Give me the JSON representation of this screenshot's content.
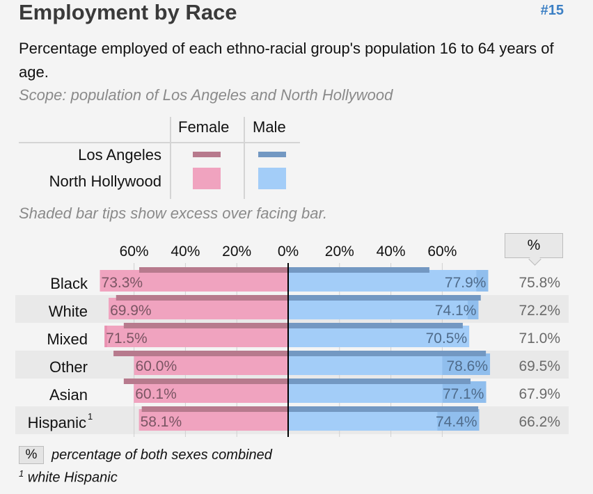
{
  "header": {
    "title": "Employment by Race",
    "number": "#15",
    "subtitle": "Percentage employed of each ethno-racial group's population 16 to 64 years of age.",
    "scope": "Scope: population of Los Angeles and North Hollywood"
  },
  "legend": {
    "col_female": "Female",
    "col_male": "Male",
    "row_la": "Los Angeles",
    "row_nh": "North Hollywood"
  },
  "note": "Shaded bar tips show excess over facing bar.",
  "pct_header": "%",
  "footer": {
    "box": "%",
    "box_text": "percentage of both sexes combined",
    "footnote_mark": "1",
    "footnote_text": "white Hispanic"
  },
  "colors": {
    "female_nh": "#f0a3bf",
    "female_la": "#b77a8d",
    "male_nh": "#a3cdf8",
    "male_la": "#7398c2",
    "badge": "#3b7fc4"
  },
  "chart_data": {
    "type": "bar",
    "orientation": "horizontal-butterfly",
    "tick_labels": [
      "60%",
      "40%",
      "20%",
      "0%",
      "20%",
      "40%",
      "60%"
    ],
    "xlim": [
      0,
      80
    ],
    "categories": [
      "Black",
      "White",
      "Mixed",
      "Other",
      "Asian",
      "Hispanic"
    ],
    "category_superscripts": [
      "",
      "",
      "",
      "",
      "",
      "1"
    ],
    "series": [
      {
        "name": "North Hollywood",
        "sex": "Female",
        "values": [
          73.3,
          69.9,
          71.5,
          60.0,
          60.1,
          58.1
        ]
      },
      {
        "name": "North Hollywood",
        "sex": "Male",
        "values": [
          77.9,
          74.1,
          70.5,
          78.6,
          77.1,
          74.4
        ]
      },
      {
        "name": "Los Angeles",
        "sex": "Female",
        "values": [
          58,
          67,
          64,
          68,
          64,
          57
        ]
      },
      {
        "name": "Los Angeles",
        "sex": "Male",
        "values": [
          55,
          75,
          68,
          77,
          71,
          74
        ]
      }
    ],
    "combined_labels": [
      "75.8%",
      "72.2%",
      "71.0%",
      "69.5%",
      "67.9%",
      "66.2%"
    ],
    "female_labels": [
      "73.3%",
      "69.9%",
      "71.5%",
      "60.0%",
      "60.1%",
      "58.1%"
    ],
    "male_labels": [
      "77.9%",
      "74.1%",
      "70.5%",
      "78.6%",
      "77.1%",
      "74.4%"
    ]
  }
}
